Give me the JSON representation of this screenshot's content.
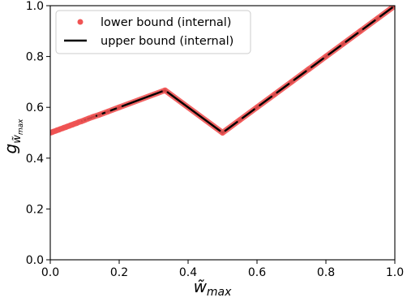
{
  "chart_data": {
    "type": "line",
    "xlabel_base": "w̃",
    "xlabel_sub": "max",
    "ylabel_base": "g",
    "ylabel_sub_base": "w̃",
    "ylabel_sub_sub": "max",
    "xlim": [
      0.0,
      1.0
    ],
    "ylim": [
      0.0,
      1.0
    ],
    "xticks": [
      "0.0",
      "0.2",
      "0.4",
      "0.6",
      "0.8",
      "1.0"
    ],
    "yticks": [
      "0.0",
      "0.2",
      "0.4",
      "0.6",
      "0.8",
      "1.0"
    ],
    "grid": false,
    "legend_position": "upper-left",
    "series": [
      {
        "name": "lower bound (internal)",
        "kind": "scatter",
        "color": "#f05454",
        "points": [
          [
            0.0,
            0.5
          ],
          [
            0.005,
            0.502
          ],
          [
            0.01,
            0.505
          ],
          [
            0.015,
            0.507
          ],
          [
            0.02,
            0.51
          ],
          [
            0.025,
            0.512
          ],
          [
            0.03,
            0.515
          ],
          [
            0.035,
            0.517
          ],
          [
            0.04,
            0.52
          ],
          [
            0.045,
            0.522
          ],
          [
            0.05,
            0.525
          ],
          [
            0.055,
            0.527
          ],
          [
            0.06,
            0.53
          ],
          [
            0.065,
            0.532
          ],
          [
            0.07,
            0.535
          ],
          [
            0.077,
            0.538
          ],
          [
            0.083,
            0.542
          ],
          [
            0.091,
            0.545
          ],
          [
            0.1,
            0.55
          ],
          [
            0.111,
            0.556
          ],
          [
            0.125,
            0.563
          ],
          [
            0.143,
            0.571
          ],
          [
            0.167,
            0.583
          ],
          [
            0.2,
            0.6
          ],
          [
            0.333,
            0.667
          ],
          [
            0.5,
            0.5
          ],
          [
            0.55,
            0.55
          ],
          [
            0.6,
            0.6
          ],
          [
            0.65,
            0.65
          ],
          [
            0.7,
            0.7
          ],
          [
            0.75,
            0.75
          ],
          [
            0.8,
            0.8
          ],
          [
            0.85,
            0.85
          ],
          [
            0.9,
            0.9
          ],
          [
            0.95,
            0.95
          ],
          [
            1.0,
            1.0
          ]
        ]
      },
      {
        "name": "upper bound (internal)",
        "kind": "line",
        "color": "#000000",
        "points": [
          [
            0.0,
            0.5
          ],
          [
            0.05,
            0.525
          ],
          [
            0.1,
            0.55
          ],
          [
            0.143,
            0.571
          ],
          [
            0.2,
            0.6
          ],
          [
            0.333,
            0.667
          ],
          [
            0.5,
            0.5
          ],
          [
            0.75,
            0.75
          ],
          [
            1.0,
            1.0
          ]
        ]
      }
    ]
  }
}
